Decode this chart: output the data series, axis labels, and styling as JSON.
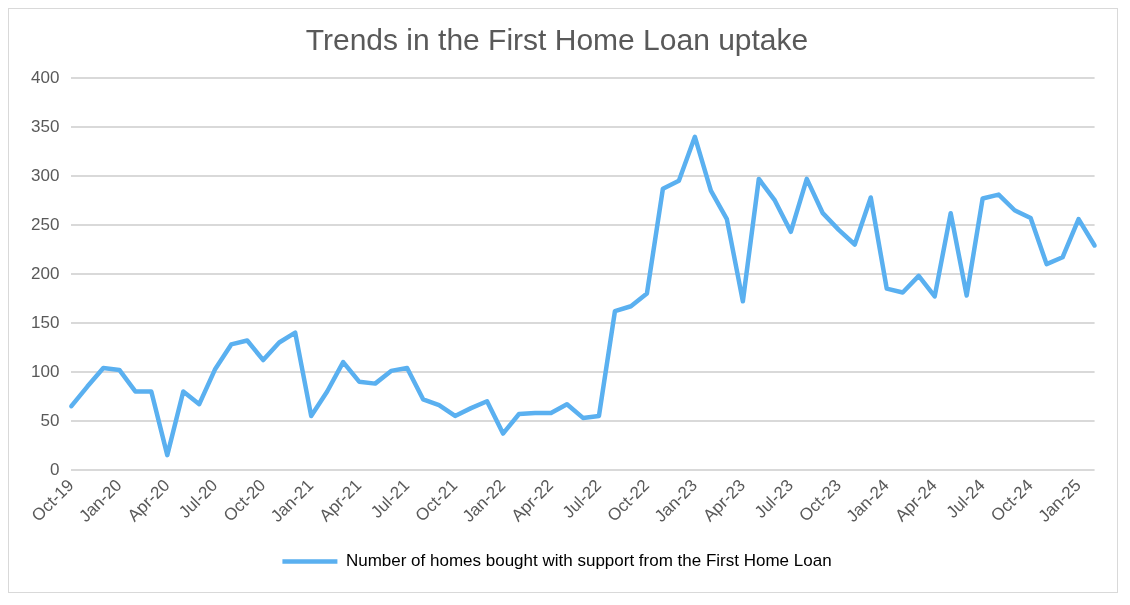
{
  "chart_data": {
    "type": "line",
    "title": "Trends in the First Home Loan uptake",
    "categories": [
      "Oct-19",
      null,
      null,
      "Jan-20",
      null,
      null,
      "Apr-20",
      null,
      null,
      "Jul-20",
      null,
      null,
      "Oct-20",
      null,
      null,
      "Jan-21",
      null,
      null,
      "Apr-21",
      null,
      null,
      "Jul-21",
      null,
      null,
      "Oct-21",
      null,
      null,
      "Jan-22",
      null,
      null,
      "Apr-22",
      null,
      null,
      "Jul-22",
      null,
      null,
      "Oct-22",
      null,
      null,
      "Jan-23",
      null,
      null,
      "Apr-23",
      null,
      null,
      "Jul-23",
      null,
      null,
      "Oct-23",
      null,
      null,
      "Jan-24",
      null,
      null,
      "Apr-24",
      null,
      null,
      "Jul-24",
      null,
      null,
      "Oct-24",
      null,
      null,
      "Jan-25",
      null
    ],
    "series": [
      {
        "name": "Number of homes bought with support from the First Home Loan",
        "color": "#5ab0f0",
        "values": [
          65,
          85,
          104,
          102,
          80,
          80,
          15,
          80,
          67,
          103,
          128,
          132,
          112,
          130,
          140,
          55,
          80,
          110,
          90,
          88,
          101,
          104,
          72,
          66,
          55,
          63,
          70,
          37,
          57,
          58,
          58,
          67,
          53,
          55,
          162,
          167,
          180,
          287,
          295,
          340,
          285,
          256,
          172,
          297,
          275,
          243,
          297,
          262,
          245,
          230,
          278,
          185,
          181,
          198,
          177,
          262,
          178,
          277,
          281,
          265,
          257,
          210,
          217,
          256,
          229
        ]
      }
    ],
    "ylim": [
      0,
      400
    ],
    "yticks": [
      0,
      50,
      100,
      150,
      200,
      250,
      300,
      350,
      400
    ],
    "grid": "y",
    "legend": "bottom",
    "marker": "none",
    "line_style": "solid"
  }
}
